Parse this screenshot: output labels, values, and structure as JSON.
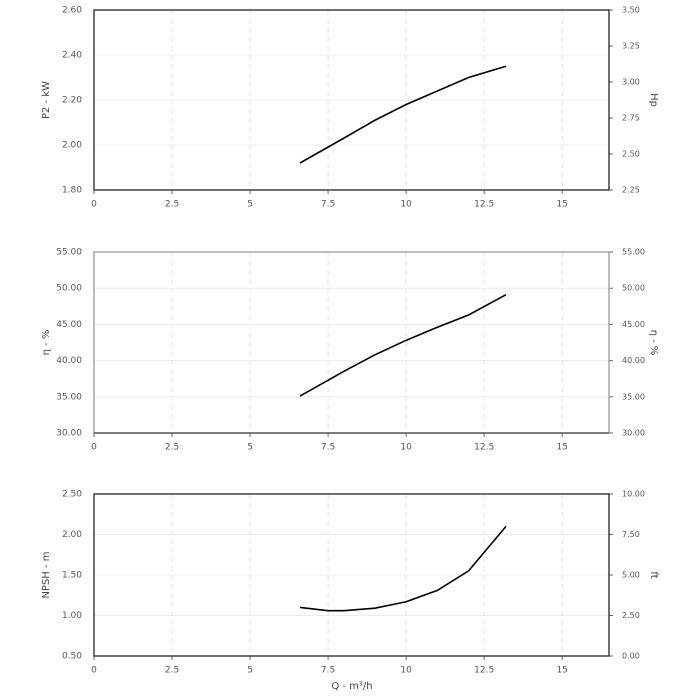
{
  "chart_data": [
    {
      "type": "line",
      "y_label": "P2 - kW",
      "y2_label": "Hp",
      "x": [
        6.6,
        8,
        9,
        10,
        11,
        12,
        13.2
      ],
      "series": [
        {
          "color": "#000000",
          "values": [
            1.92,
            2.03,
            2.11,
            2.18,
            2.24,
            2.3,
            2.35
          ]
        }
      ],
      "xlim": [
        0,
        16.5
      ],
      "xticks": [
        0,
        2.5,
        5,
        7.5,
        10,
        12.5,
        15
      ],
      "ylim": [
        1.8,
        2.6
      ],
      "yticks": [
        {
          "value": 1.8,
          "label": "1.80"
        },
        {
          "value": 2.0,
          "label": "2.00"
        },
        {
          "value": 2.2,
          "label": "2.20"
        },
        {
          "value": 2.4,
          "label": "2.40"
        },
        {
          "value": 2.6,
          "label": "2.60"
        }
      ],
      "y2lim": [
        2.25,
        3.5
      ],
      "y2ticks": [
        {
          "value": 2.25,
          "label": "2.25"
        },
        {
          "value": 2.5,
          "label": "2.50"
        },
        {
          "value": 2.75,
          "label": "2.75"
        },
        {
          "value": 3.0,
          "label": "3.00"
        },
        {
          "value": 3.25,
          "label": "3.25"
        },
        {
          "value": 3.5,
          "label": "3.50"
        }
      ],
      "grid": true
    },
    {
      "type": "line",
      "y_label": "η - %",
      "y2_label": "η - %",
      "x": [
        6.6,
        8,
        9,
        10,
        11,
        12,
        13.2
      ],
      "series": [
        {
          "color": "#000000",
          "values": [
            35.1,
            38.5,
            40.8,
            42.8,
            44.6,
            46.3,
            49.1
          ]
        }
      ],
      "xlim": [
        0,
        16.5
      ],
      "xticks": [
        0,
        2.5,
        5,
        7.5,
        10,
        12.5,
        15
      ],
      "ylim": [
        30,
        55
      ],
      "yticks": [
        {
          "value": 30,
          "label": "30.00"
        },
        {
          "value": 35,
          "label": "35.00"
        },
        {
          "value": 40,
          "label": "40.00"
        },
        {
          "value": 45,
          "label": "45.00"
        },
        {
          "value": 50,
          "label": "50.00"
        },
        {
          "value": 55,
          "label": "55.00"
        }
      ],
      "y2lim": [
        30,
        55
      ],
      "y2ticks": [
        {
          "value": 30,
          "label": "30.00"
        },
        {
          "value": 35,
          "label": "35.00"
        },
        {
          "value": 40,
          "label": "40.00"
        },
        {
          "value": 45,
          "label": "45.00"
        },
        {
          "value": 50,
          "label": "50.00"
        },
        {
          "value": 55,
          "label": "55.00"
        }
      ],
      "grid": true
    },
    {
      "type": "line",
      "y_label": "NPSH - m",
      "y2_label": "ft",
      "x_label": "Q - m³/h",
      "x": [
        6.6,
        7.5,
        8,
        9,
        10,
        11,
        12,
        13.2
      ],
      "series": [
        {
          "color": "#000000",
          "values": [
            1.1,
            1.06,
            1.06,
            1.09,
            1.17,
            1.31,
            1.55,
            2.1
          ]
        }
      ],
      "xlim": [
        0,
        16.5
      ],
      "xticks": [
        0,
        2.5,
        5,
        7.5,
        10,
        12.5,
        15
      ],
      "ylim": [
        0.5,
        2.5
      ],
      "yticks": [
        {
          "value": 0.5,
          "label": "0.50"
        },
        {
          "value": 1.0,
          "label": "1.00"
        },
        {
          "value": 1.5,
          "label": "1.50"
        },
        {
          "value": 2.0,
          "label": "2.00"
        },
        {
          "value": 2.5,
          "label": "2.50"
        }
      ],
      "y2lim": [
        0,
        10
      ],
      "y2ticks": [
        {
          "value": 0,
          "label": "0.00"
        },
        {
          "value": 2.5,
          "label": "2.50"
        },
        {
          "value": 5,
          "label": "5.00"
        },
        {
          "value": 7.5,
          "label": "7.50"
        },
        {
          "value": 10,
          "label": "10.00"
        }
      ],
      "grid": true
    }
  ]
}
